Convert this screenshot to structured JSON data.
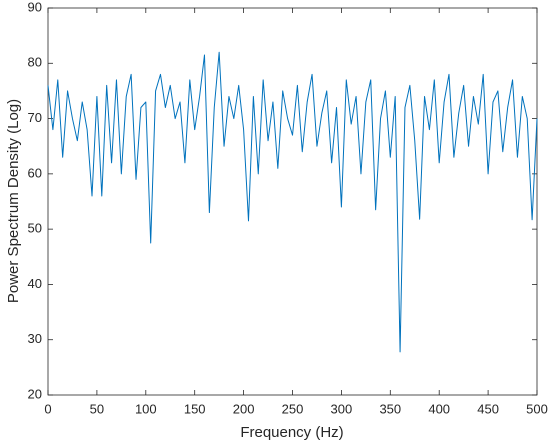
{
  "chart_data": {
    "type": "line",
    "xlabel": "Frequency (Hz)",
    "ylabel": "Power Spectrum Density (Log)",
    "x": [
      0,
      5,
      10,
      15,
      20,
      25,
      30,
      35,
      40,
      45,
      50,
      55,
      60,
      65,
      70,
      75,
      80,
      85,
      90,
      95,
      100,
      105,
      110,
      115,
      120,
      125,
      130,
      135,
      140,
      145,
      150,
      155,
      160,
      165,
      170,
      175,
      180,
      185,
      190,
      195,
      200,
      205,
      210,
      215,
      220,
      225,
      230,
      235,
      240,
      245,
      250,
      255,
      260,
      265,
      270,
      275,
      280,
      285,
      290,
      295,
      300,
      305,
      310,
      315,
      320,
      325,
      330,
      335,
      340,
      345,
      350,
      355,
      360,
      365,
      370,
      375,
      380,
      385,
      390,
      395,
      400,
      405,
      410,
      415,
      420,
      425,
      430,
      435,
      440,
      445,
      450,
      455,
      460,
      465,
      470,
      475,
      480,
      485,
      490,
      495,
      500
    ],
    "values": [
      76,
      68,
      77,
      63,
      75,
      70,
      66,
      73,
      68,
      56,
      74,
      56,
      76,
      62,
      77,
      60,
      74,
      78,
      59,
      72,
      73,
      47.5,
      75,
      78,
      72,
      76,
      70,
      73,
      62,
      77,
      68,
      74,
      81.5,
      53,
      72,
      82,
      65,
      74,
      70,
      76,
      68,
      51.5,
      74,
      60,
      77,
      66,
      73,
      61,
      75,
      70,
      67,
      76,
      64,
      73,
      78,
      65,
      71,
      75,
      62,
      72,
      54,
      77,
      69,
      74,
      60,
      73,
      77,
      53.5,
      70,
      75,
      63,
      74,
      27.8,
      72,
      76,
      66,
      51.8,
      74,
      68,
      77,
      62,
      73,
      78,
      63,
      71,
      76,
      65,
      74,
      69,
      78,
      60,
      73,
      75,
      64,
      72,
      77,
      63,
      74,
      70,
      51.7,
      70
    ],
    "color": "#0072bd",
    "xlim": [
      0,
      500
    ],
    "xticks": [
      0,
      50,
      100,
      150,
      200,
      250,
      300,
      350,
      400,
      450,
      500
    ],
    "ylim": [
      20,
      90
    ],
    "yticks": [
      20,
      30,
      40,
      50,
      60,
      70,
      80,
      90
    ]
  }
}
